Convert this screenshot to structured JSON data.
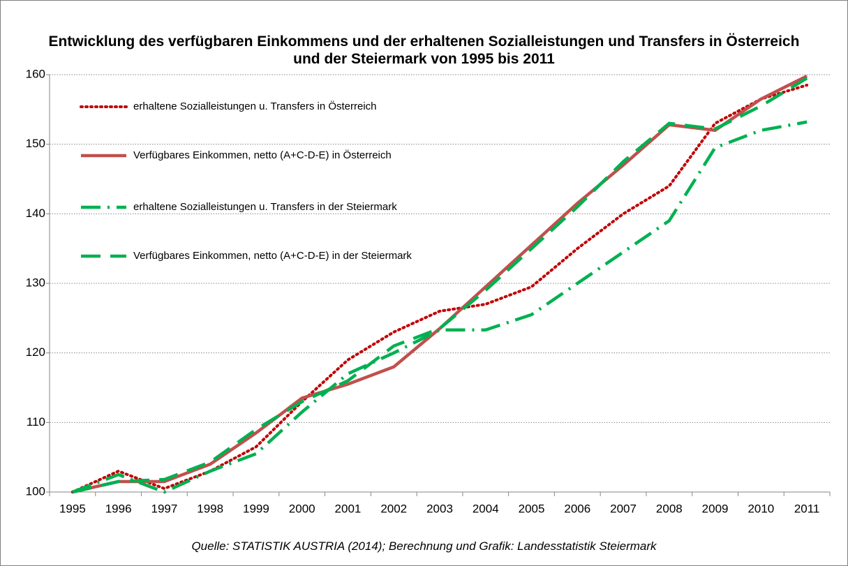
{
  "chart_data": {
    "type": "line",
    "title": "Entwicklung des verfügbaren Einkommens und der erhaltenen Sozialleistungen und Transfers in Österreich und der Steiermark von 1995 bis 2011",
    "source": "Quelle: STATISTIK AUSTRIA (2014); Berechnung und Grafik: Landesstatistik Steiermark",
    "categories": [
      "1995",
      "1996",
      "1997",
      "1998",
      "1999",
      "2000",
      "2001",
      "2002",
      "2003",
      "2004",
      "2005",
      "2006",
      "2007",
      "2008",
      "2009",
      "2010",
      "2011"
    ],
    "ylim": [
      100,
      160
    ],
    "yticks": [
      100,
      110,
      120,
      130,
      140,
      150,
      160
    ],
    "grid": true,
    "series": [
      {
        "name": "erhaltene Sozialleistungen u. Transfers in Österreich",
        "color": "#c00000",
        "style": "dotted",
        "values": [
          100,
          103,
          100.5,
          103,
          106.5,
          113,
          119,
          123,
          126,
          127,
          129.5,
          135,
          140,
          144,
          153,
          156.5,
          158.5
        ]
      },
      {
        "name": "Verfügbares Einkommen, netto (A+C-D-E) in Österreich",
        "color": "#c0504d",
        "style": "solid",
        "values": [
          100,
          101.5,
          101.5,
          104,
          108.5,
          113.5,
          115.5,
          118,
          123.5,
          129.5,
          135.5,
          141.5,
          147,
          152.8,
          152,
          156.5,
          159.8
        ]
      },
      {
        "name": "erhaltene Sozialleistungen u. Transfers in der Steiermark",
        "color": "#00b050",
        "style": "dashdot",
        "values": [
          100,
          102.5,
          100,
          103,
          105.5,
          111.5,
          117,
          120,
          123.3,
          123.3,
          125.5,
          130,
          134.5,
          139,
          149.5,
          152,
          153.2
        ]
      },
      {
        "name": "Verfügbares Einkommen, netto (A+C-D-E) in der Steiermark",
        "color": "#00b050",
        "style": "dashed",
        "values": [
          100,
          101.5,
          101.8,
          104.3,
          109,
          113,
          116,
          121,
          123.5,
          129,
          135,
          141,
          147.5,
          153,
          152.2,
          155.5,
          159.5
        ]
      }
    ]
  }
}
